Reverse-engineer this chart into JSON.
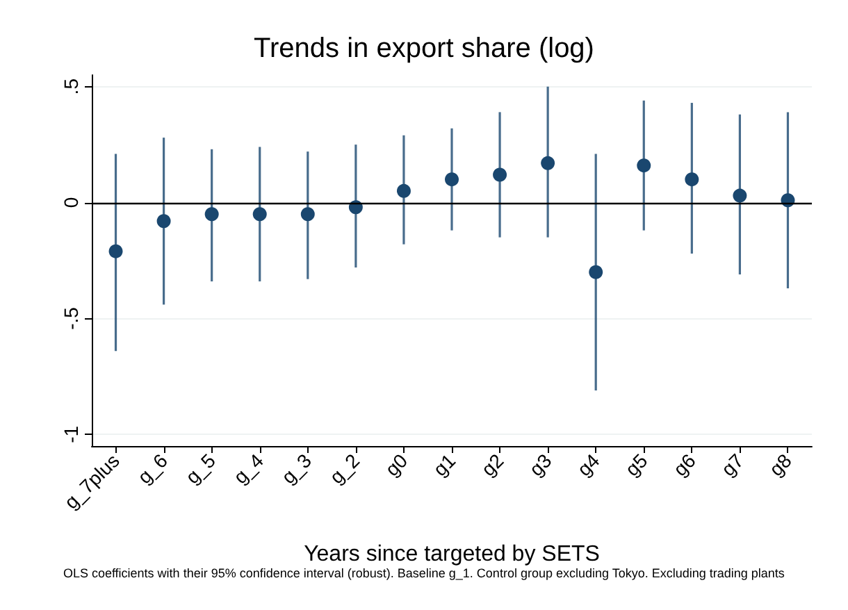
{
  "chart_data": {
    "type": "scatter",
    "title": "Trends in export share (log)",
    "xlabel": "Years since targeted by SETS",
    "annotations": [
      "OLS coefficients with their 95% confidence interval (robust). Baseline g_1. Control group excluding Tokyo. Excluding trading plants"
    ],
    "categories": [
      "g_7plus",
      "g_6",
      "g_5",
      "g_4",
      "g_3",
      "g_2",
      "g0",
      "g1",
      "g2",
      "g3",
      "g4",
      "g5",
      "g6",
      "g7",
      "g8"
    ],
    "series": [
      {
        "color": "#1a476f",
        "values": [
          -0.21,
          -0.08,
          -0.05,
          -0.05,
          -0.05,
          -0.02,
          0.05,
          0.1,
          0.12,
          0.17,
          -0.3,
          0.16,
          0.1,
          0.03,
          0.01
        ],
        "errors": [
          [
            -0.64,
            0.21
          ],
          [
            -0.44,
            0.28
          ],
          [
            -0.34,
            0.23
          ],
          [
            -0.34,
            0.24
          ],
          [
            -0.33,
            0.22
          ],
          [
            -0.28,
            0.25
          ],
          [
            -0.18,
            0.29
          ],
          [
            -0.12,
            0.32
          ],
          [
            -0.15,
            0.39
          ],
          [
            -0.15,
            0.5
          ],
          [
            -0.81,
            0.21
          ],
          [
            -0.12,
            0.44
          ],
          [
            -0.22,
            0.43
          ],
          [
            -0.31,
            0.38
          ],
          [
            -0.37,
            0.39
          ]
        ]
      }
    ],
    "ylim": [
      -1.05,
      0.55
    ],
    "yticks": [
      {
        "value": -1,
        "label": "-1"
      },
      {
        "value": -0.5,
        "label": "-.5"
      },
      {
        "value": 0,
        "label": "0"
      },
      {
        "value": 0.5,
        "label": ".5"
      }
    ],
    "ref_lines": [
      {
        "axis": "y",
        "value": 0,
        "color": "#000000"
      }
    ],
    "grid": "y",
    "marker": "circle"
  }
}
